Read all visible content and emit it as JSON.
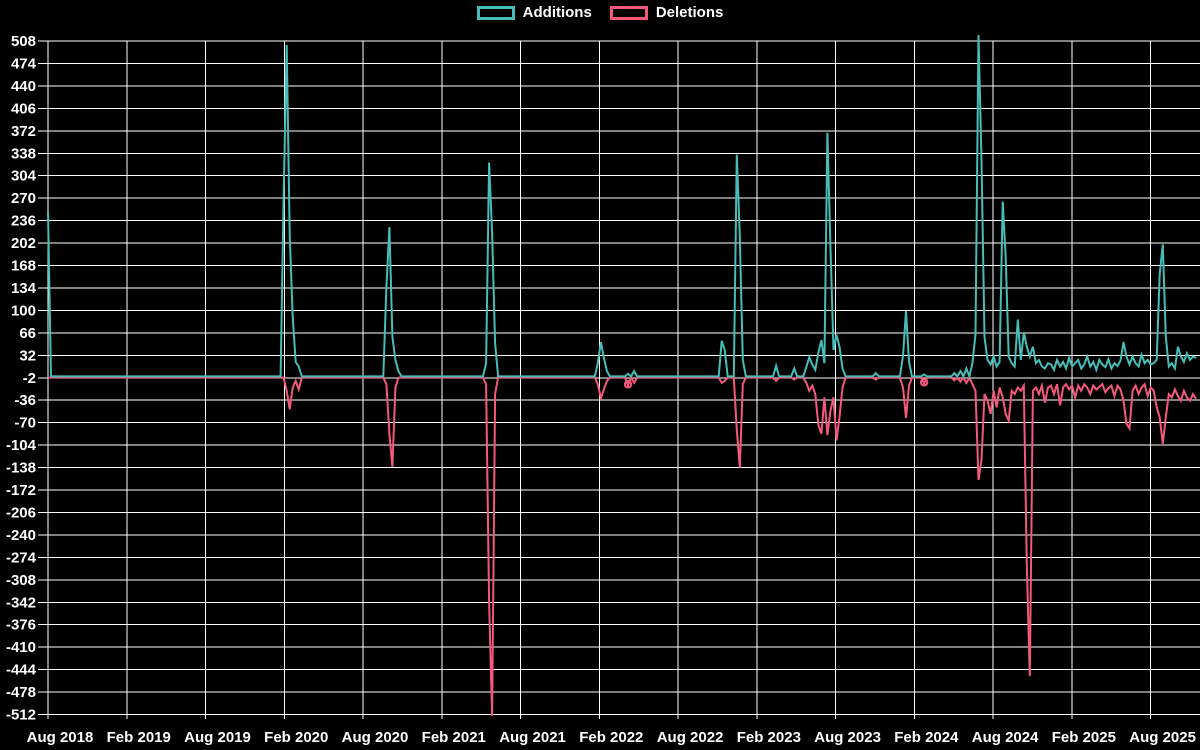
{
  "legend": {
    "items": [
      {
        "label": "Additions",
        "color_key": "additions"
      },
      {
        "label": "Deletions",
        "color_key": "deletions"
      }
    ]
  },
  "colors": {
    "additions": "#46beb7",
    "deletions": "#f4597b",
    "background": "#000000",
    "grid": "#ffffff",
    "text": "#ffffff"
  },
  "chart_data": {
    "type": "line",
    "title": "",
    "xlabel": "",
    "ylabel": "",
    "legend_position": "top-center",
    "grid": true,
    "y_max": 508,
    "y_min": -512,
    "y_ticks": [
      508,
      474,
      440,
      406,
      372,
      338,
      304,
      270,
      236,
      202,
      168,
      134,
      100,
      66,
      32,
      -2,
      -36,
      -70,
      -104,
      -138,
      -172,
      -206,
      -240,
      -274,
      -308,
      -342,
      -376,
      -410,
      -444,
      -478,
      -512
    ],
    "x_tick_labels": [
      "Aug 2018",
      "Feb 2019",
      "Aug 2019",
      "Feb 2020",
      "Aug 2020",
      "Feb 2021",
      "Aug 2021",
      "Feb 2022",
      "Aug 2022",
      "Feb 2023",
      "Aug 2023",
      "Feb 2024",
      "Aug 2024",
      "Feb 2025",
      "Aug 2025"
    ],
    "weeks_total": 381,
    "weeks_per_tick": 26.07,
    "series": [
      {
        "name": "Additions",
        "color_key": "additions",
        "default_value": 0,
        "points": [
          [
            0,
            250
          ],
          [
            78,
            270
          ],
          [
            79,
            502
          ],
          [
            80,
            215
          ],
          [
            81,
            90
          ],
          [
            82,
            22
          ],
          [
            83,
            15
          ],
          [
            112,
            135
          ],
          [
            113,
            226
          ],
          [
            114,
            60
          ],
          [
            115,
            25
          ],
          [
            116,
            8
          ],
          [
            145,
            20
          ],
          [
            146,
            324
          ],
          [
            147,
            218
          ],
          [
            148,
            50
          ],
          [
            182,
            20
          ],
          [
            183,
            52
          ],
          [
            184,
            28
          ],
          [
            185,
            8
          ],
          [
            192,
            4
          ],
          [
            194,
            8
          ],
          [
            223,
            54
          ],
          [
            224,
            40
          ],
          [
            228,
            336
          ],
          [
            229,
            212
          ],
          [
            230,
            25
          ],
          [
            241,
            16
          ],
          [
            247,
            12
          ],
          [
            251,
            14
          ],
          [
            252,
            29
          ],
          [
            253,
            18
          ],
          [
            254,
            10
          ],
          [
            255,
            36
          ],
          [
            256,
            55
          ],
          [
            257,
            20
          ],
          [
            258,
            369
          ],
          [
            259,
            193
          ],
          [
            260,
            40
          ],
          [
            261,
            63
          ],
          [
            262,
            45
          ],
          [
            263,
            12
          ],
          [
            274,
            5
          ],
          [
            283,
            31
          ],
          [
            284,
            99
          ],
          [
            285,
            22
          ],
          [
            290,
            3
          ],
          [
            300,
            5
          ],
          [
            302,
            8
          ],
          [
            304,
            12
          ],
          [
            306,
            20
          ],
          [
            307,
            64
          ],
          [
            308,
            517
          ],
          [
            309,
            328
          ],
          [
            310,
            60
          ],
          [
            311,
            25
          ],
          [
            312,
            18
          ],
          [
            313,
            30
          ],
          [
            314,
            15
          ],
          [
            315,
            22
          ],
          [
            316,
            265
          ],
          [
            317,
            181
          ],
          [
            318,
            30
          ],
          [
            319,
            20
          ],
          [
            320,
            15
          ],
          [
            321,
            86
          ],
          [
            322,
            25
          ],
          [
            323,
            67
          ],
          [
            324,
            45
          ],
          [
            325,
            30
          ],
          [
            326,
            45
          ],
          [
            327,
            20
          ],
          [
            328,
            25
          ],
          [
            329,
            15
          ],
          [
            330,
            12
          ],
          [
            331,
            20
          ],
          [
            332,
            18
          ],
          [
            333,
            10
          ],
          [
            334,
            25
          ],
          [
            335,
            15
          ],
          [
            336,
            22
          ],
          [
            337,
            12
          ],
          [
            338,
            28
          ],
          [
            339,
            15
          ],
          [
            340,
            20
          ],
          [
            341,
            25
          ],
          [
            342,
            12
          ],
          [
            343,
            18
          ],
          [
            344,
            30
          ],
          [
            345,
            15
          ],
          [
            346,
            22
          ],
          [
            347,
            10
          ],
          [
            348,
            25
          ],
          [
            349,
            18
          ],
          [
            350,
            14
          ],
          [
            351,
            26
          ],
          [
            352,
            12
          ],
          [
            353,
            20
          ],
          [
            354,
            16
          ],
          [
            355,
            24
          ],
          [
            356,
            52
          ],
          [
            357,
            30
          ],
          [
            358,
            18
          ],
          [
            359,
            30
          ],
          [
            360,
            20
          ],
          [
            361,
            15
          ],
          [
            362,
            33
          ],
          [
            363,
            20
          ],
          [
            364,
            25
          ],
          [
            365,
            18
          ],
          [
            366,
            20
          ],
          [
            367,
            25
          ],
          [
            368,
            155
          ],
          [
            369,
            200
          ],
          [
            370,
            60
          ],
          [
            371,
            15
          ],
          [
            372,
            20
          ],
          [
            373,
            12
          ],
          [
            374,
            45
          ],
          [
            375,
            30
          ],
          [
            376,
            22
          ],
          [
            377,
            35
          ],
          [
            378,
            25
          ],
          [
            379,
            30
          ],
          [
            380,
            28
          ]
        ]
      },
      {
        "name": "Deletions",
        "color_key": "deletions",
        "default_value": 0,
        "points": [
          [
            79,
            -20
          ],
          [
            80,
            -48
          ],
          [
            81,
            -15
          ],
          [
            82,
            -5
          ],
          [
            83,
            -18
          ],
          [
            112,
            -10
          ],
          [
            113,
            -85
          ],
          [
            114,
            -135
          ],
          [
            115,
            -15
          ],
          [
            145,
            -10
          ],
          [
            146,
            -340
          ],
          [
            147,
            -512
          ],
          [
            148,
            -25
          ],
          [
            182,
            -10
          ],
          [
            183,
            -31
          ],
          [
            184,
            -18
          ],
          [
            185,
            -5
          ],
          [
            192,
            -12
          ],
          [
            194,
            -8
          ],
          [
            223,
            -8
          ],
          [
            224,
            -5
          ],
          [
            228,
            -79
          ],
          [
            229,
            -136
          ],
          [
            230,
            -10
          ],
          [
            241,
            -5
          ],
          [
            247,
            -3
          ],
          [
            251,
            -8
          ],
          [
            252,
            -20
          ],
          [
            253,
            -12
          ],
          [
            254,
            -25
          ],
          [
            255,
            -72
          ],
          [
            256,
            -85
          ],
          [
            257,
            -30
          ],
          [
            258,
            -87
          ],
          [
            259,
            -50
          ],
          [
            260,
            -30
          ],
          [
            261,
            -95
          ],
          [
            262,
            -60
          ],
          [
            263,
            -15
          ],
          [
            274,
            -3
          ],
          [
            283,
            -15
          ],
          [
            284,
            -61
          ],
          [
            285,
            -12
          ],
          [
            290,
            -9
          ],
          [
            300,
            -4
          ],
          [
            302,
            -6
          ],
          [
            304,
            -8
          ],
          [
            306,
            -10
          ],
          [
            307,
            -20
          ],
          [
            308,
            -155
          ],
          [
            309,
            -125
          ],
          [
            310,
            -25
          ],
          [
            311,
            -35
          ],
          [
            312,
            -55
          ],
          [
            313,
            -20
          ],
          [
            314,
            -45
          ],
          [
            315,
            -15
          ],
          [
            316,
            -30
          ],
          [
            317,
            -55
          ],
          [
            318,
            -65
          ],
          [
            319,
            -20
          ],
          [
            320,
            -25
          ],
          [
            321,
            -15
          ],
          [
            322,
            -20
          ],
          [
            323,
            -12
          ],
          [
            324,
            -283
          ],
          [
            325,
            -452
          ],
          [
            326,
            -20
          ],
          [
            327,
            -15
          ],
          [
            328,
            -25
          ],
          [
            329,
            -12
          ],
          [
            330,
            -38
          ],
          [
            331,
            -15
          ],
          [
            332,
            -12
          ],
          [
            333,
            -25
          ],
          [
            334,
            -10
          ],
          [
            335,
            -42
          ],
          [
            336,
            -15
          ],
          [
            337,
            -10
          ],
          [
            338,
            -18
          ],
          [
            339,
            -12
          ],
          [
            340,
            -30
          ],
          [
            341,
            -12
          ],
          [
            342,
            -20
          ],
          [
            343,
            -10
          ],
          [
            344,
            -15
          ],
          [
            345,
            -25
          ],
          [
            346,
            -12
          ],
          [
            347,
            -18
          ],
          [
            348,
            -14
          ],
          [
            349,
            -10
          ],
          [
            350,
            -22
          ],
          [
            351,
            -16
          ],
          [
            352,
            -12
          ],
          [
            353,
            -28
          ],
          [
            354,
            -12
          ],
          [
            355,
            -18
          ],
          [
            356,
            -35
          ],
          [
            357,
            -70
          ],
          [
            358,
            -77
          ],
          [
            359,
            -20
          ],
          [
            360,
            -12
          ],
          [
            361,
            -25
          ],
          [
            362,
            -15
          ],
          [
            363,
            -10
          ],
          [
            364,
            -28
          ],
          [
            365,
            -15
          ],
          [
            366,
            -20
          ],
          [
            367,
            -45
          ],
          [
            368,
            -60
          ],
          [
            369,
            -100
          ],
          [
            370,
            -60
          ],
          [
            371,
            -25
          ],
          [
            372,
            -30
          ],
          [
            373,
            -18
          ],
          [
            374,
            -28
          ],
          [
            375,
            -35
          ],
          [
            376,
            -20
          ],
          [
            377,
            -30
          ],
          [
            378,
            -35
          ],
          [
            379,
            -25
          ],
          [
            380,
            -32
          ]
        ]
      }
    ],
    "point_markers": [
      {
        "series": "Deletions",
        "week": 192,
        "value": -12
      },
      {
        "series": "Deletions",
        "week": 290,
        "value": -9
      }
    ]
  }
}
